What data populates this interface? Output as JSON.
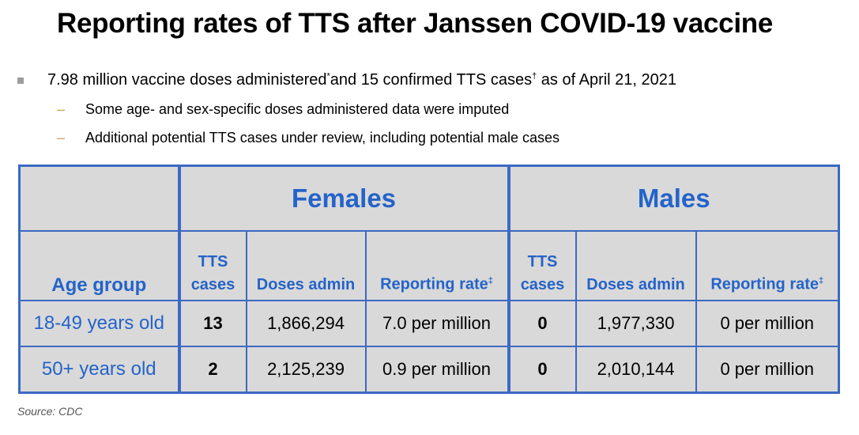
{
  "title": "Reporting rates of TTS after Janssen COVID-19 vaccine",
  "bullet_main": {
    "part1": "7.98 million vaccine doses administered",
    "mark1": "*",
    "part2": "and 15 confirmed TTS cases",
    "mark2": "†",
    "part3": " as of April 21, 2021"
  },
  "sub_bullets": [
    "Some age- and sex-specific doses administered data were imputed",
    "Additional potential TTS cases under review, including potential male cases"
  ],
  "dash_glyph": "–",
  "table": {
    "groups": {
      "females": "Females",
      "males": "Males"
    },
    "headers": {
      "age_group": "Age group",
      "tts_cases": "TTS cases",
      "doses_admin": "Doses admin",
      "reporting_rate": "Reporting rate",
      "rate_mark": "‡"
    },
    "rows": [
      {
        "age": "18-49 years old",
        "f_cases": "13",
        "f_doses": "1,866,294",
        "f_rate": "7.0 per million",
        "m_cases": "0",
        "m_doses": "1,977,330",
        "m_rate": "0 per million"
      },
      {
        "age": "50+ years old",
        "f_cases": "2",
        "f_doses": "2,125,239",
        "f_rate": "0.9 per million",
        "m_cases": "0",
        "m_doses": "2,010,144",
        "m_rate": "0 per million"
      }
    ]
  },
  "source": "Source: CDC",
  "colors": {
    "accent_blue": "#2463c9",
    "border_blue": "#3d69c2",
    "cell_gray": "#d9d9d9",
    "bullet_gray": "#9c9c9c",
    "dash_gold": "#c9a35a"
  }
}
